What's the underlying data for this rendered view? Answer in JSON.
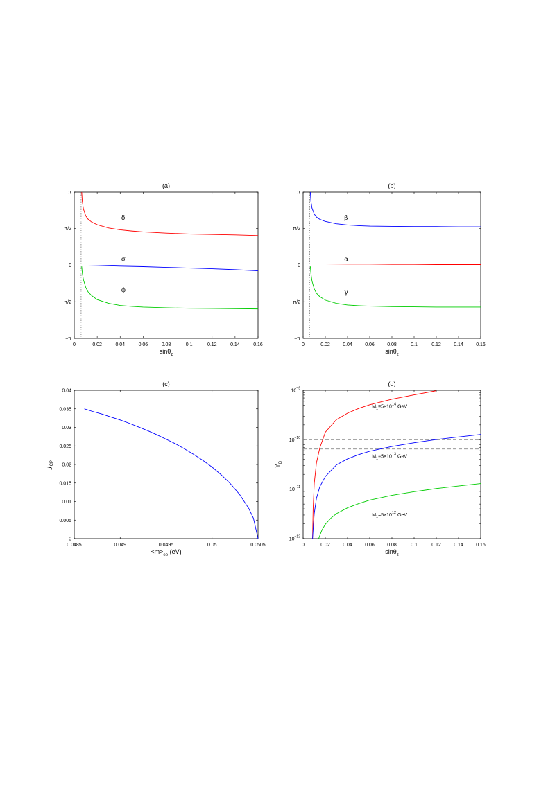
{
  "chart_data": [
    {
      "id": "a",
      "type": "line",
      "title": "(a)",
      "xlabel": "sinθ",
      "xlabel_sub": "z",
      "ylabel": "",
      "xlim": [
        0,
        0.16
      ],
      "ylim": [
        -3.14159,
        3.14159
      ],
      "xticks": [
        0,
        0.02,
        0.04,
        0.06,
        0.08,
        0.1,
        0.12,
        0.14,
        0.16
      ],
      "xtick_labels": [
        "0",
        "0.02",
        "0.04",
        "0.06",
        "0.08",
        "0.1",
        "0.12",
        "0.14",
        "0.16"
      ],
      "yticks": [
        -3.14159,
        -1.5708,
        0,
        1.5708,
        3.14159
      ],
      "ytick_labels": [
        "−π",
        "−π/2",
        "0",
        "π/2",
        "π"
      ],
      "vline": 0.006,
      "series": [
        {
          "name": "δ",
          "color": "#ff0000",
          "label_at": [
            0.041,
            1.95
          ],
          "x": [
            0.0065,
            0.007,
            0.008,
            0.01,
            0.012,
            0.015,
            0.02,
            0.03,
            0.04,
            0.05,
            0.06,
            0.08,
            0.1,
            0.12,
            0.14,
            0.16
          ],
          "y": [
            3.14,
            2.75,
            2.42,
            2.12,
            1.98,
            1.86,
            1.74,
            1.6,
            1.52,
            1.47,
            1.43,
            1.38,
            1.34,
            1.32,
            1.3,
            1.27
          ]
        },
        {
          "name": "σ",
          "color": "#0000ff",
          "label_at": [
            0.041,
            0.18
          ],
          "x": [
            0.0065,
            0.01,
            0.02,
            0.04,
            0.06,
            0.08,
            0.1,
            0.12,
            0.14,
            0.16
          ],
          "y": [
            0.0,
            0.0,
            -0.01,
            -0.04,
            -0.06,
            -0.09,
            -0.12,
            -0.15,
            -0.19,
            -0.24
          ]
        },
        {
          "name": "ϕ",
          "color": "#00cc00",
          "label_at": [
            0.041,
            -1.15
          ],
          "x": [
            0.0065,
            0.007,
            0.008,
            0.01,
            0.012,
            0.015,
            0.02,
            0.03,
            0.04,
            0.05,
            0.06,
            0.08,
            0.1,
            0.12,
            0.14,
            0.16
          ],
          "y": [
            -0.05,
            -0.32,
            -0.62,
            -0.95,
            -1.14,
            -1.3,
            -1.48,
            -1.64,
            -1.73,
            -1.77,
            -1.8,
            -1.83,
            -1.85,
            -1.86,
            -1.87,
            -1.88
          ]
        }
      ]
    },
    {
      "id": "b",
      "type": "line",
      "title": "(b)",
      "xlabel": "sinθ",
      "xlabel_sub": "z",
      "ylabel": "",
      "xlim": [
        0,
        0.16
      ],
      "ylim": [
        -3.14159,
        3.14159
      ],
      "xticks": [
        0,
        0.02,
        0.04,
        0.06,
        0.08,
        0.1,
        0.12,
        0.14,
        0.16
      ],
      "xtick_labels": [
        "0",
        "0.02",
        "0.04",
        "0.06",
        "0.08",
        "0.1",
        "0.12",
        "0.14",
        "0.16"
      ],
      "yticks": [
        -3.14159,
        -1.5708,
        0,
        1.5708,
        3.14159
      ],
      "ytick_labels": [
        "−π",
        "−π/2",
        "0",
        "π/2",
        "π"
      ],
      "vline": 0.006,
      "series": [
        {
          "name": "β",
          "color": "#0000ff",
          "label_at": [
            0.037,
            1.95
          ],
          "x": [
            0.0065,
            0.007,
            0.008,
            0.01,
            0.012,
            0.015,
            0.02,
            0.03,
            0.04,
            0.05,
            0.06,
            0.08,
            0.1,
            0.12,
            0.14,
            0.16
          ],
          "y": [
            3.14,
            2.75,
            2.45,
            2.2,
            2.07,
            1.97,
            1.88,
            1.78,
            1.73,
            1.7,
            1.68,
            1.67,
            1.66,
            1.66,
            1.65,
            1.65
          ]
        },
        {
          "name": "α",
          "color": "#ff0000",
          "label_at": [
            0.037,
            0.18
          ],
          "x": [
            0.0065,
            0.02,
            0.04,
            0.06,
            0.08,
            0.1,
            0.12,
            0.14,
            0.16
          ],
          "y": [
            0.0,
            0.0,
            0.01,
            0.01,
            0.02,
            0.02,
            0.03,
            0.03,
            0.03
          ]
        },
        {
          "name": "γ",
          "color": "#00cc00",
          "label_at": [
            0.037,
            -1.25
          ],
          "x": [
            0.0065,
            0.007,
            0.008,
            0.01,
            0.012,
            0.015,
            0.02,
            0.03,
            0.04,
            0.05,
            0.06,
            0.08,
            0.1,
            0.12,
            0.14,
            0.16
          ],
          "y": [
            -0.05,
            -0.35,
            -0.68,
            -1.02,
            -1.2,
            -1.35,
            -1.5,
            -1.64,
            -1.71,
            -1.74,
            -1.76,
            -1.78,
            -1.79,
            -1.8,
            -1.8,
            -1.8
          ]
        }
      ]
    },
    {
      "id": "c",
      "type": "line",
      "title": "(c)",
      "xlabel": "<m>",
      "xlabel_sub": "ee",
      "xlabel_suffix": "(eV)",
      "ylabel": "J",
      "ylabel_sub": "CP",
      "xlim": [
        0.0485,
        0.0505
      ],
      "ylim": [
        0,
        0.04
      ],
      "xticks": [
        0.0485,
        0.049,
        0.0495,
        0.05,
        0.0505
      ],
      "xtick_labels": [
        "0.0485",
        "0.049",
        "0.0495",
        "0.05",
        "0.0505"
      ],
      "yticks": [
        0,
        0.005,
        0.01,
        0.015,
        0.02,
        0.025,
        0.03,
        0.035,
        0.04
      ],
      "ytick_labels": [
        "0",
        "0.005",
        "0.01",
        "0.015",
        "0.02",
        "0.025",
        "0.03",
        "0.035",
        "0.04"
      ],
      "series": [
        {
          "name": "",
          "color": "#0000ff",
          "x": [
            0.04861,
            0.0487,
            0.0488,
            0.0489,
            0.049,
            0.0491,
            0.0492,
            0.0493,
            0.0494,
            0.0495,
            0.0496,
            0.0497,
            0.0498,
            0.0499,
            0.05,
            0.0501,
            0.0502,
            0.0503,
            0.0504,
            0.05045,
            0.0505
          ],
          "y": [
            0.035,
            0.0343,
            0.0336,
            0.0328,
            0.032,
            0.0311,
            0.0301,
            0.0291,
            0.028,
            0.0268,
            0.0256,
            0.0242,
            0.0227,
            0.0211,
            0.0193,
            0.0172,
            0.0148,
            0.0119,
            0.0081,
            0.0055,
            0.0
          ]
        }
      ]
    },
    {
      "id": "d",
      "type": "line",
      "title": "(d)",
      "xlabel": "sinθ",
      "xlabel_sub": "z",
      "ylabel": "Y",
      "ylabel_sub": "B",
      "yscale": "log",
      "xlim": [
        0,
        0.16
      ],
      "ylim": [
        1e-12,
        1e-09
      ],
      "xticks": [
        0,
        0.02,
        0.04,
        0.06,
        0.08,
        0.1,
        0.12,
        0.14,
        0.16
      ],
      "xtick_labels": [
        "0",
        "0.02",
        "0.04",
        "0.06",
        "0.08",
        "0.1",
        "0.12",
        "0.14",
        "0.16"
      ],
      "yticks": [
        1e-12,
        1e-11,
        1e-10,
        1e-09
      ],
      "ytick_labels": [
        [
          "10",
          "−12"
        ],
        [
          "10",
          "−11"
        ],
        [
          "10",
          "−10"
        ],
        [
          "10",
          "−9"
        ]
      ],
      "hlines": [
        1e-10,
        6.5e-11
      ],
      "series": [
        {
          "name": "M",
          "sub": "1",
          "suffix": "=5×10",
          "sup": "14",
          "unit": " GeV",
          "color": "#ff0000",
          "label_at": [
            0.062,
            4.4e-10
          ],
          "x": [
            0.0085,
            0.009,
            0.01,
            0.012,
            0.015,
            0.02,
            0.03,
            0.04,
            0.05,
            0.06,
            0.08,
            0.1,
            0.12
          ],
          "y": [
            1e-12,
            4e-12,
            1.3e-11,
            3.4e-11,
            6.8e-11,
            1.42e-10,
            2.55e-10,
            3.45e-10,
            4.3e-10,
            5.1e-10,
            6.6e-10,
            8.1e-10,
            9.8e-10
          ]
        },
        {
          "name": "M",
          "sub": "1",
          "suffix": "=5×10",
          "sup": "13",
          "unit": " GeV",
          "color": "#0000ff",
          "label_at": [
            0.062,
            4.3e-11
          ],
          "x": [
            0.0085,
            0.009,
            0.01,
            0.012,
            0.015,
            0.02,
            0.03,
            0.04,
            0.05,
            0.06,
            0.08,
            0.1,
            0.12,
            0.14,
            0.16
          ],
          "y": [
            1e-12,
            1.5e-12,
            3.2e-12,
            6.5e-12,
            1.12e-11,
            1.8e-11,
            3.1e-11,
            4.1e-11,
            5e-11,
            5.85e-11,
            7.3e-11,
            8.7e-11,
            1.01e-10,
            1.14e-10,
            1.28e-10
          ]
        },
        {
          "name": "M",
          "sub": "1",
          "suffix": "=5×10",
          "sup": "12",
          "unit": " GeV",
          "color": "#00cc00",
          "label_at": [
            0.062,
            2.8e-12
          ],
          "x": [
            0.014,
            0.015,
            0.017,
            0.02,
            0.025,
            0.03,
            0.04,
            0.05,
            0.06,
            0.08,
            0.1,
            0.12,
            0.14,
            0.16
          ],
          "y": [
            1e-12,
            1.15e-12,
            1.5e-12,
            1.95e-12,
            2.6e-12,
            3.2e-12,
            4.2e-12,
            5.1e-12,
            6e-12,
            7.5e-12,
            8.9e-12,
            1.03e-11,
            1.16e-11,
            1.3e-11
          ]
        }
      ]
    }
  ]
}
